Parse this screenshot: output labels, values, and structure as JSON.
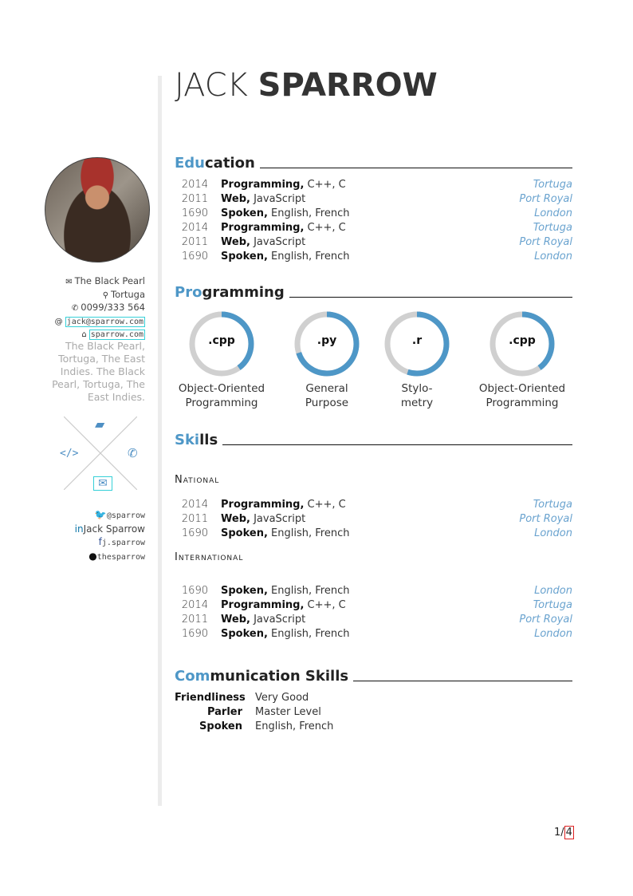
{
  "header": {
    "first_name": "JACK",
    "last_name": "SPARROW"
  },
  "sidebar": {
    "contact": [
      {
        "icon": "envelope-icon",
        "glyph": "✉",
        "text": "The Black Pearl",
        "mono": false
      },
      {
        "icon": "map-marker-icon",
        "glyph": "⚲",
        "text": "Tortuga",
        "mono": false
      },
      {
        "icon": "phone-icon",
        "glyph": "✆",
        "text": "0099/333 564",
        "mono": false
      },
      {
        "icon": "at-icon",
        "glyph": "@",
        "text": "jack@sparrow.com",
        "mono": true
      },
      {
        "icon": "home-icon",
        "glyph": "⌂",
        "text": "sparrow.com",
        "mono": true
      }
    ],
    "address": "The Black Pearl, Tortuga, The East Indies. The Black Pearl, Tortuga, The East Indies.",
    "social": [
      {
        "icon": "twitter-icon",
        "glyph": "🐦",
        "text": "@sparrow",
        "mono": true,
        "color": "#1da1f2"
      },
      {
        "icon": "linkedin-icon",
        "glyph": "in",
        "text": "Jack Sparrow",
        "mono": false,
        "color": "#0e76a8"
      },
      {
        "icon": "facebook-icon",
        "glyph": "f",
        "text": "j.sparrow",
        "mono": true,
        "color": "#3b5998"
      },
      {
        "icon": "github-icon",
        "glyph": "●",
        "text": "thesparrow",
        "mono": true,
        "color": "#111"
      }
    ]
  },
  "colors": {
    "accent": "#4e97c7",
    "ring_bg": "#d0d0d0",
    "link_box": "#36d0d8"
  },
  "sections": {
    "education": {
      "hl": "Edu",
      "rest": "cation"
    },
    "programming": {
      "hl": "Pro",
      "rest": "gramming"
    },
    "skills": {
      "hl": "Ski",
      "rest": "lls"
    },
    "communication": {
      "hl": "Com",
      "rest": "munication Skills"
    }
  },
  "education": [
    {
      "year": "2014",
      "title": "Programming,",
      "detail": " C++, C",
      "place": "Tortuga"
    },
    {
      "year": "2011",
      "title": "Web,",
      "detail": " JavaScript",
      "place": "Port Royal"
    },
    {
      "year": "1690",
      "title": "Spoken,",
      "detail": " English, French",
      "place": "London"
    },
    {
      "year": "2014",
      "title": "Programming,",
      "detail": " C++, C",
      "place": "Tortuga"
    },
    {
      "year": "2011",
      "title": "Web,",
      "detail": " JavaScript",
      "place": "Port Royal"
    },
    {
      "year": "1690",
      "title": "Spoken,",
      "detail": " English, French",
      "place": "London"
    }
  ],
  "programming": [
    {
      "ext": ".cpp",
      "label1": "Object-Oriented",
      "label2": "Programming",
      "level": 0.4
    },
    {
      "ext": ".py",
      "label1": "General",
      "label2": "Purpose",
      "level": 0.7
    },
    {
      "ext": ".r",
      "label1": "Stylo-",
      "label2": "metry",
      "level": 0.55
    },
    {
      "ext": ".cpp",
      "label1": "Object-Oriented",
      "label2": "Programming",
      "level": 0.4
    }
  ],
  "skills": {
    "national_label": "National",
    "national": [
      {
        "year": "2014",
        "title": "Programming,",
        "detail": " C++, C",
        "place": "Tortuga"
      },
      {
        "year": "2011",
        "title": "Web,",
        "detail": " JavaScript",
        "place": "Port Royal"
      },
      {
        "year": "1690",
        "title": "Spoken,",
        "detail": " English, French",
        "place": "London"
      }
    ],
    "international_label": "International",
    "international": [
      {
        "year": "1690",
        "title": "Spoken,",
        "detail": " English, French",
        "place": "London"
      },
      {
        "year": "2014",
        "title": "Programming,",
        "detail": " C++, C",
        "place": "Tortuga"
      },
      {
        "year": "2011",
        "title": "Web,",
        "detail": " JavaScript",
        "place": "Port Royal"
      },
      {
        "year": "1690",
        "title": "Spoken,",
        "detail": " English, French",
        "place": "London"
      }
    ]
  },
  "communication": [
    {
      "key": "Friendliness",
      "value": "Very Good"
    },
    {
      "key": "Parler",
      "value": "Master Level"
    },
    {
      "key": "Spoken",
      "value": "English, French"
    }
  ],
  "footer": {
    "page": "1/",
    "total": "4"
  }
}
